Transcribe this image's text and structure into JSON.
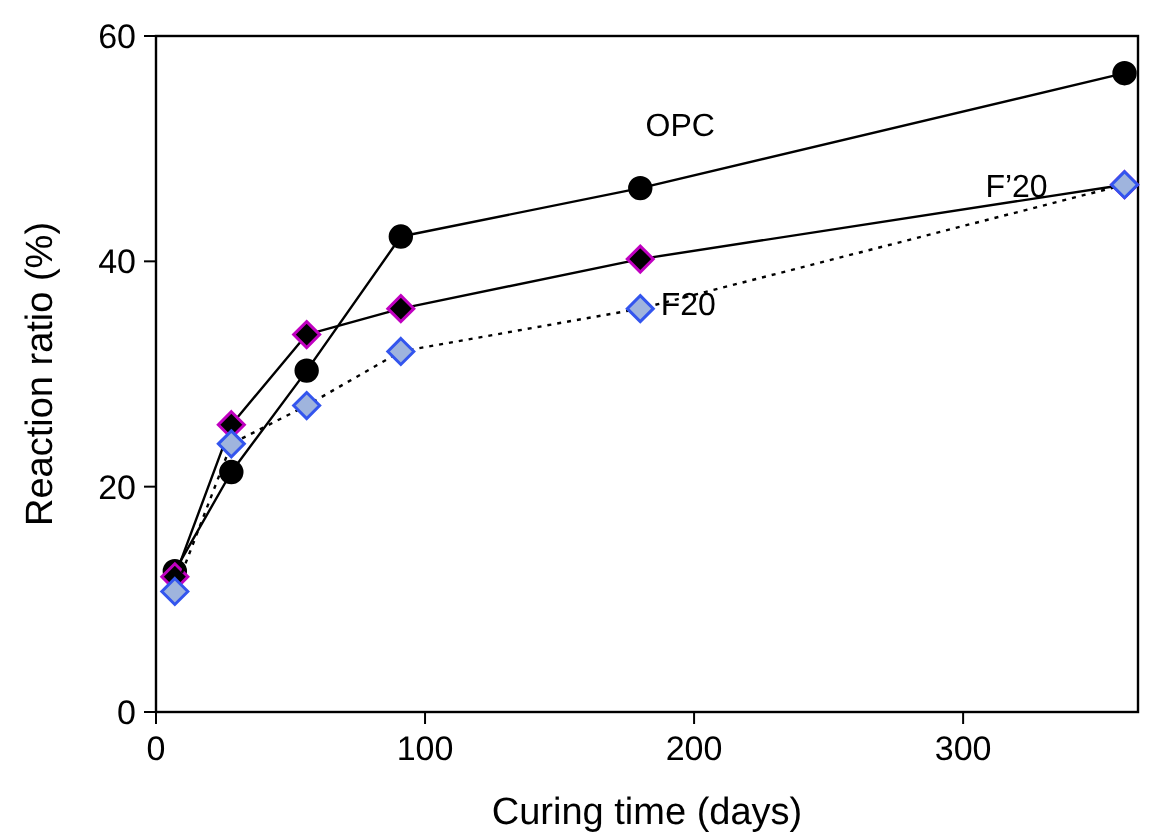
{
  "chart_data": {
    "type": "line",
    "xlabel": "Curing time (days)",
    "ylabel": "Reaction ratio (%)",
    "xlim": [
      0,
      365
    ],
    "xticks": [
      0,
      100,
      200,
      300
    ],
    "ylim": [
      0,
      60
    ],
    "yticks": [
      0,
      20,
      40,
      60
    ],
    "grid": false,
    "series": [
      {
        "name": "OPC",
        "color": "#000000",
        "marker": "circle",
        "line_style": "solid",
        "x": [
          7,
          28,
          56,
          91,
          180,
          360
        ],
        "values": [
          12.5,
          21.3,
          30.3,
          42.2,
          46.5,
          56.7
        ]
      },
      {
        "name": "F’20",
        "color": "#000000",
        "marker": "diamond",
        "line_style": "solid",
        "x": [
          7,
          28,
          56,
          91,
          180,
          360
        ],
        "values": [
          12,
          25.5,
          33.5,
          35.8,
          40.2,
          46.8
        ]
      },
      {
        "name": "F20",
        "color": "#000000",
        "marker": "diamond",
        "line_style": "dotted",
        "x": [
          7,
          28,
          56,
          91,
          180,
          360
        ],
        "values": [
          10.7,
          23.8,
          27.2,
          32,
          35.8,
          46.8
        ]
      }
    ]
  }
}
